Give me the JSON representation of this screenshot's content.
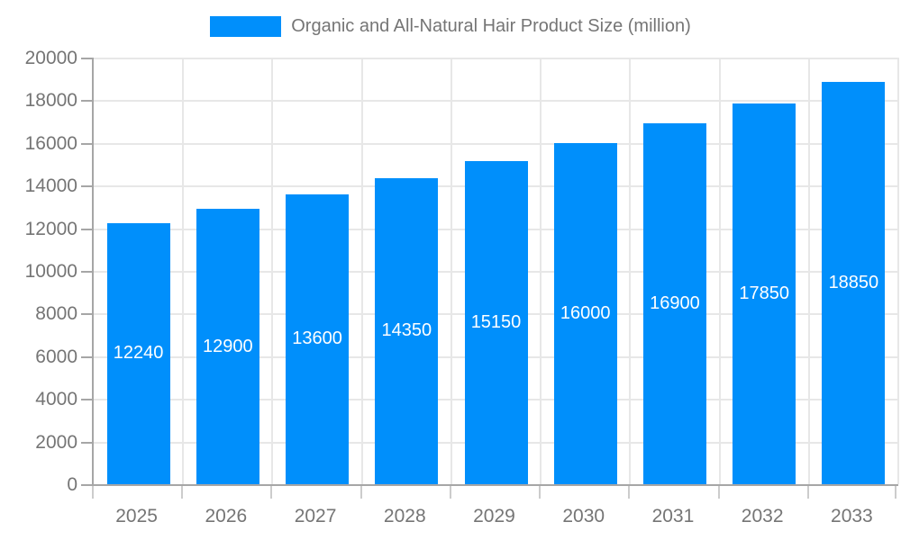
{
  "legend": {
    "label": "Organic and All-Natural Hair Product Size (million)"
  },
  "chart_data": {
    "type": "bar",
    "title": "Organic and All-Natural Hair Product Size (million)",
    "categories": [
      "2025",
      "2026",
      "2027",
      "2028",
      "2029",
      "2030",
      "2031",
      "2032",
      "2033"
    ],
    "values": [
      12240,
      12900,
      13600,
      14350,
      15150,
      16000,
      16900,
      17850,
      18850
    ],
    "xlabel": "",
    "ylabel": "",
    "ylim": [
      0,
      20000
    ],
    "ytick_step": 2000,
    "grid": true,
    "legend_position": "top",
    "bar_color": "#008FFB",
    "bar_label_color": "#ffffff",
    "axis_text_color": "#757575",
    "grid_color": "#e7e7e7",
    "axis_line_color": "#a6a6a6"
  }
}
